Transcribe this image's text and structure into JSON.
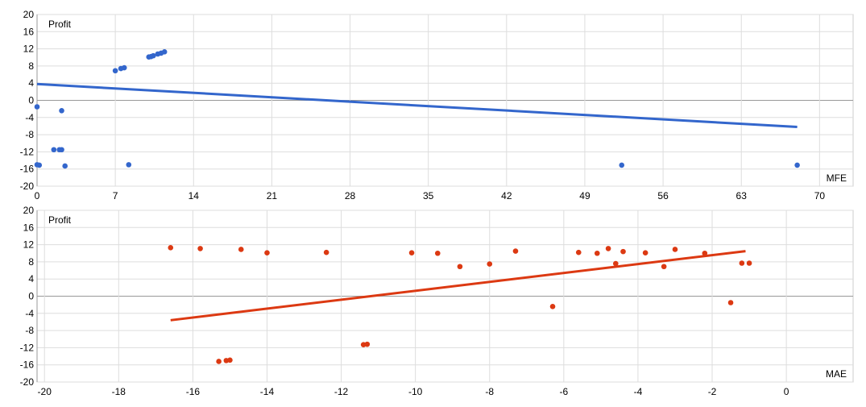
{
  "chart_data": [
    {
      "type": "scatter",
      "title": "",
      "xlabel": "MFE",
      "ylabel": "Profit",
      "xlim": [
        0,
        73
      ],
      "ylim": [
        -20,
        20
      ],
      "xticks": [
        0,
        7,
        14,
        21,
        28,
        35,
        42,
        49,
        56,
        63,
        70
      ],
      "yticks": [
        -20,
        -16,
        -12,
        -8,
        -4,
        0,
        4,
        8,
        12,
        16,
        20
      ],
      "grid": true,
      "color": "#3366cc",
      "points": [
        {
          "x": 0.0,
          "y": -1.5
        },
        {
          "x": 0.0,
          "y": -15.0
        },
        {
          "x": 0.2,
          "y": -15.1
        },
        {
          "x": 1.5,
          "y": -11.5
        },
        {
          "x": 2.0,
          "y": -11.5
        },
        {
          "x": 2.2,
          "y": -11.5
        },
        {
          "x": 2.2,
          "y": -2.4
        },
        {
          "x": 2.5,
          "y": -15.3
        },
        {
          "x": 7.0,
          "y": 6.9
        },
        {
          "x": 7.5,
          "y": 7.4
        },
        {
          "x": 7.8,
          "y": 7.6
        },
        {
          "x": 8.2,
          "y": -15.0
        },
        {
          "x": 10.0,
          "y": 10.1
        },
        {
          "x": 10.2,
          "y": 10.2
        },
        {
          "x": 10.4,
          "y": 10.4
        },
        {
          "x": 10.8,
          "y": 10.8
        },
        {
          "x": 11.1,
          "y": 11.0
        },
        {
          "x": 11.4,
          "y": 11.3
        },
        {
          "x": 52.3,
          "y": -15.1
        },
        {
          "x": 68.0,
          "y": -15.1
        }
      ],
      "trendline": {
        "x": [
          0,
          68
        ],
        "y": [
          3.8,
          -6.2
        ]
      }
    },
    {
      "type": "scatter",
      "title": "",
      "xlabel": "MAE",
      "ylabel": "Profit",
      "xlim": [
        -20.2,
        1.8
      ],
      "ylim": [
        -20,
        20
      ],
      "xticks": [
        -20,
        -18,
        -16,
        -14,
        -12,
        -10,
        -8,
        -6,
        -4,
        -2,
        0
      ],
      "yticks": [
        -20,
        -16,
        -12,
        -8,
        -4,
        0,
        4,
        8,
        12,
        16,
        20
      ],
      "grid": true,
      "color": "#dc3912",
      "points": [
        {
          "x": -16.6,
          "y": 11.3
        },
        {
          "x": -15.8,
          "y": 11.1
        },
        {
          "x": -15.3,
          "y": -15.2
        },
        {
          "x": -15.1,
          "y": -15.0
        },
        {
          "x": -15.0,
          "y": -14.9
        },
        {
          "x": -14.7,
          "y": 10.9
        },
        {
          "x": -14.0,
          "y": 10.1
        },
        {
          "x": -12.4,
          "y": 10.2
        },
        {
          "x": -11.4,
          "y": -11.3
        },
        {
          "x": -11.3,
          "y": -11.2
        },
        {
          "x": -10.1,
          "y": 10.1
        },
        {
          "x": -9.4,
          "y": 10.0
        },
        {
          "x": -8.8,
          "y": 6.9
        },
        {
          "x": -8.0,
          "y": 7.5
        },
        {
          "x": -7.3,
          "y": 10.5
        },
        {
          "x": -6.3,
          "y": -2.4
        },
        {
          "x": -5.6,
          "y": 10.2
        },
        {
          "x": -5.1,
          "y": 10.0
        },
        {
          "x": -4.8,
          "y": 11.1
        },
        {
          "x": -4.6,
          "y": 7.6
        },
        {
          "x": -4.4,
          "y": 10.4
        },
        {
          "x": -3.8,
          "y": 10.1
        },
        {
          "x": -3.3,
          "y": 6.9
        },
        {
          "x": -3.0,
          "y": 10.9
        },
        {
          "x": -2.2,
          "y": 10.0
        },
        {
          "x": -1.5,
          "y": -1.5
        },
        {
          "x": -1.2,
          "y": 7.7
        },
        {
          "x": -1.0,
          "y": 7.7
        }
      ],
      "trendline": {
        "x": [
          -16.6,
          -1.1
        ],
        "y": [
          -5.6,
          10.5
        ]
      }
    }
  ]
}
